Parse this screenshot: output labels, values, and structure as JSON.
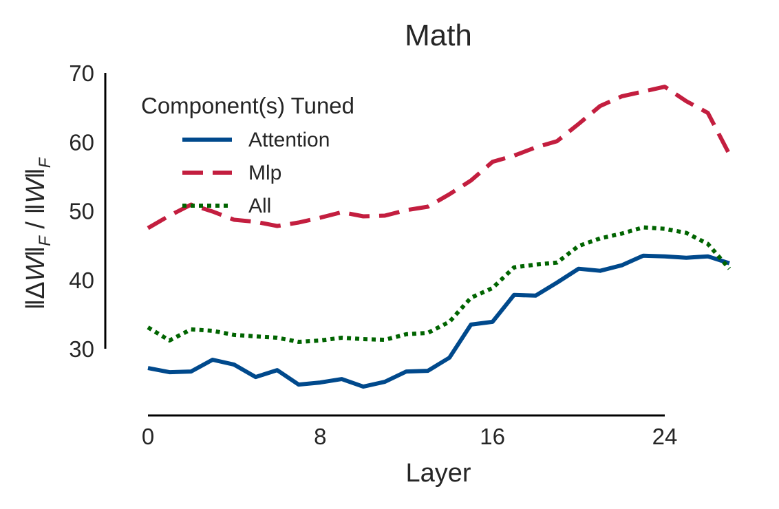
{
  "chart_data": {
    "type": "line",
    "title": "Math",
    "xlabel": "Layer",
    "ylabel": "‖ΔW‖F / ‖W‖F",
    "xlim": [
      0,
      27
    ],
    "ylim": [
      30,
      70
    ],
    "xticks": [
      "0",
      "8",
      "16",
      "24"
    ],
    "yticks": [
      "30",
      "40",
      "50",
      "60",
      "70"
    ],
    "grid": false,
    "legend": {
      "title": "Component(s) Tuned",
      "placement": "top-left"
    },
    "x": [
      0,
      1,
      2,
      3,
      4,
      5,
      6,
      7,
      8,
      9,
      10,
      11,
      12,
      13,
      14,
      15,
      16,
      17,
      18,
      19,
      20,
      21,
      22,
      23,
      24,
      25,
      26,
      27
    ],
    "series": [
      {
        "name": "Attention",
        "color": "#00498c",
        "style": "solid",
        "values": [
          27.2,
          26.6,
          26.7,
          28.4,
          27.7,
          25.9,
          26.9,
          24.8,
          25.1,
          25.6,
          24.5,
          25.2,
          26.7,
          26.8,
          28.7,
          33.5,
          33.9,
          37.8,
          37.7,
          39.6,
          41.6,
          41.3,
          42.1,
          43.5,
          43.4,
          43.2,
          43.4,
          42.4
        ]
      },
      {
        "name": "Mlp",
        "color": "#c31e3f",
        "style": "dashed",
        "values": [
          47.5,
          49.3,
          50.9,
          49.9,
          48.7,
          48.4,
          47.8,
          48.3,
          49.0,
          49.8,
          49.2,
          49.3,
          50.1,
          50.6,
          52.4,
          54.4,
          57.1,
          58.0,
          59.2,
          60.1,
          62.6,
          65.2,
          66.6,
          67.3,
          68.0,
          65.9,
          64.2,
          58.2
        ]
      },
      {
        "name": "All",
        "color": "#006400",
        "style": "dotted",
        "values": [
          33.1,
          31.2,
          32.8,
          32.6,
          32.0,
          31.8,
          31.6,
          31.0,
          31.2,
          31.6,
          31.4,
          31.3,
          32.1,
          32.3,
          33.9,
          37.4,
          38.8,
          41.8,
          42.2,
          42.5,
          44.9,
          46.0,
          46.7,
          47.6,
          47.4,
          46.8,
          45.2,
          41.6
        ]
      }
    ]
  }
}
